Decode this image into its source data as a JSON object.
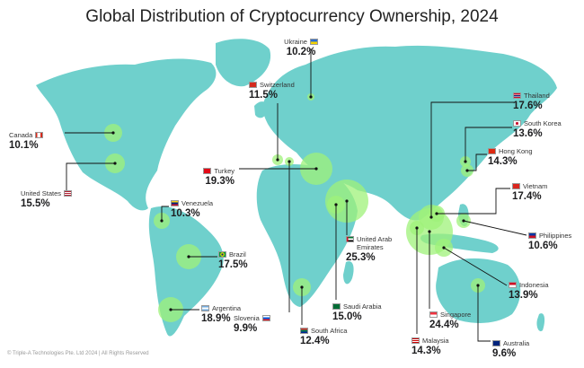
{
  "title": "Global Distribution of Cryptocurrency Ownership, 2024",
  "footer": "© Triple-A Technologies Pte. Ltd 2024 | All Rights Reserved",
  "colors": {
    "land": "#6fd0cc",
    "bubble": "#9ff27a",
    "line": "#111111"
  },
  "countries": [
    {
      "name": "Ukraine",
      "value": "10.2%"
    },
    {
      "name": "Switzerland",
      "value": "11.5%"
    },
    {
      "name": "Thailand",
      "value": "17.6%"
    },
    {
      "name": "South Korea",
      "value": "13.6%"
    },
    {
      "name": "Hong Kong",
      "value": "14.3%"
    },
    {
      "name": "Canada",
      "value": "10.1%"
    },
    {
      "name": "Turkey",
      "value": "19.3%"
    },
    {
      "name": "Vietnam",
      "value": "17.4%"
    },
    {
      "name": "United States",
      "value": "15.5%"
    },
    {
      "name": "Venezuela",
      "value": "10.3%"
    },
    {
      "name": "Philippines",
      "value": "10.6%"
    },
    {
      "name": "United Arab Emirates",
      "value": "25.3%"
    },
    {
      "name": "Brazil",
      "value": "17.5%"
    },
    {
      "name": "Indonesia",
      "value": "13.9%"
    },
    {
      "name": "Argentina",
      "value": "18.9%"
    },
    {
      "name": "Saudi Arabia",
      "value": "15.0%"
    },
    {
      "name": "Slovenia",
      "value": "9.9%"
    },
    {
      "name": "Singapore",
      "value": "24.4%"
    },
    {
      "name": "South Africa",
      "value": "12.4%"
    },
    {
      "name": "Malaysia",
      "value": "14.3%"
    },
    {
      "name": "Australia",
      "value": "9.6%"
    }
  ]
}
